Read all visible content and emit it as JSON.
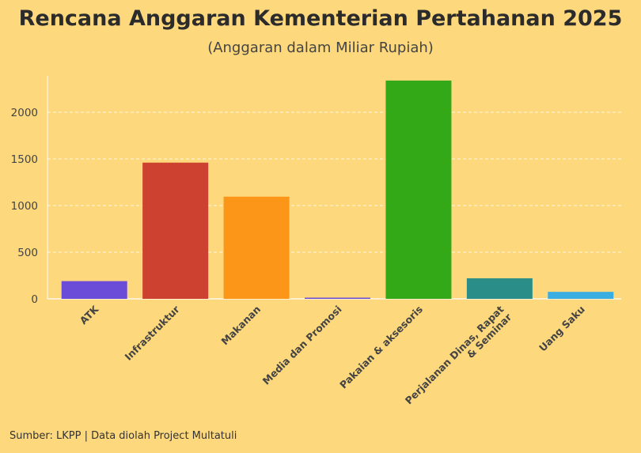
{
  "header": {
    "title": "Rencana Anggaran Kementerian Pertahanan 2025",
    "subtitle": "(Anggaran dalam Miliar Rupiah)"
  },
  "footer": {
    "source": "Sumber: LKPP | Data diolah Project Multatuli"
  },
  "chart_data": {
    "type": "bar",
    "title": "Rencana Anggaran Kementerian Pertahanan 2025",
    "subtitle": "(Anggaran dalam Miliar Rupiah)",
    "categories": [
      [
        "ATK"
      ],
      [
        "Infrastruktur"
      ],
      [
        "Makanan"
      ],
      [
        "Media dan Promosi"
      ],
      [
        "Pakaian & aksesoris"
      ],
      [
        "Perjalanan Dinas, Rapat",
        "& Seminar"
      ],
      [
        "Uang Saku"
      ]
    ],
    "values": [
      190,
      1460,
      1095,
      12,
      2340,
      220,
      75
    ],
    "colors": [
      "#6a4cd8",
      "#cc4130",
      "#fb9619",
      "#6a4cd8",
      "#33a917",
      "#2b8d88",
      "#3aaee0"
    ],
    "yticks": [
      0,
      500,
      1000,
      1500,
      2000
    ],
    "ylim": [
      0,
      2400
    ],
    "grid": true,
    "grid_color": "#ffffff",
    "background": "#fed87c"
  }
}
